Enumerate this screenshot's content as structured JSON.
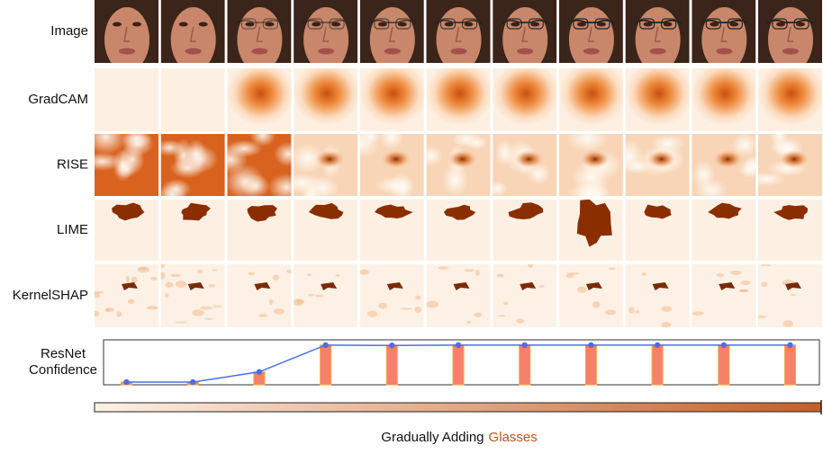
{
  "rows": [
    "Image",
    "GradCAM",
    "RISE",
    "LIME",
    "KernelSHAP"
  ],
  "confidence_chart": {
    "type": "line",
    "label": [
      "ResNet",
      "Confidence"
    ],
    "values": [
      0,
      0,
      0.27,
      0.98,
      0.97,
      0.98,
      0.98,
      0.98,
      0.98,
      0.98,
      0.98
    ],
    "ylim": [
      0,
      1
    ],
    "line_color": "#4a6fe3",
    "bar_color": "#f7806a"
  },
  "caption": {
    "text": "Gradually Adding",
    "highlight": "Glasses",
    "highlight_color": "#b5571f"
  }
}
